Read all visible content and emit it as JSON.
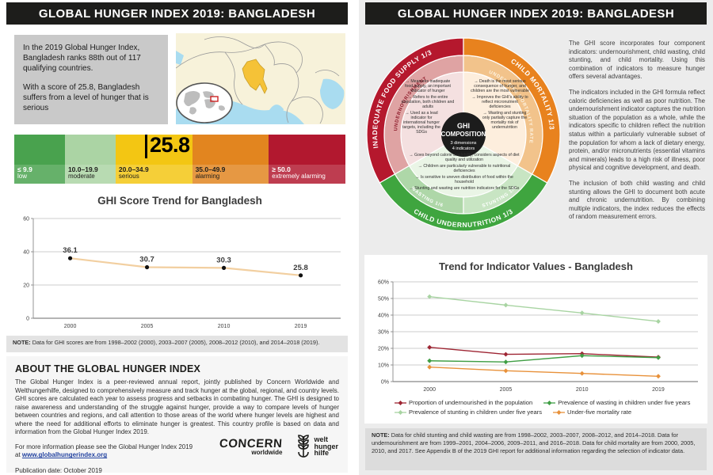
{
  "left": {
    "header": "GLOBAL HUNGER INDEX 2019: BANGLADESH",
    "summary": {
      "para1": "In the 2019 Global Hunger Index, Bangladesh ranks 88th out of 117 qualifying countries.",
      "para2": "With a score of 25.8, Bangladesh suffers from a level of hunger that is serious"
    },
    "scale": {
      "marker_value": "25.8",
      "segments": [
        {
          "range": "≤ 9.9",
          "label": "low",
          "color": "#49a24e",
          "text_color": "#ffffff"
        },
        {
          "range": "10.0–19.9",
          "label": "moderate",
          "color": "#abd4a4",
          "text_color": "#1d1d1b"
        },
        {
          "range": "20.0–34.9",
          "label": "serious",
          "color": "#f3c613",
          "text_color": "#1d1d1b"
        },
        {
          "range": "35.0–49.9",
          "label": "alarming",
          "color": "#e2851f",
          "text_color": "#1d1d1b"
        },
        {
          "range": "≥ 50.0",
          "label": "extremely alarming",
          "color": "#b2182f",
          "text_color": "#ffffff"
        }
      ]
    },
    "note_label": "NOTE:",
    "note_text": "Data for GHI scores are from 1998–2002 (2000), 2003–2007 (2005), 2008–2012 (2010), and 2014–2018 (2019).",
    "about": {
      "heading": "ABOUT THE GLOBAL HUNGER INDEX",
      "body": "The Global Hunger Index is a peer-reviewed annual report, jointly published by Concern Worldwide and Welthungerhilfe, designed to comprehensively measure and track hunger at the global, regional, and country levels. GHI scores are calculated each year to assess progress and setbacks in combating hunger. The GHI is designed to raise awareness and understanding of the struggle against hunger, provide a way to compare levels of hunger between countries and regions, and call attention to those areas of the world where hunger levels are highest and where the need for additional efforts to eliminate hunger is greatest. This country profile is based on data and information from the Global Hunger Index 2019.",
      "more_info_line": "For more information please see the Global Hunger Index 2019",
      "at_prefix": "at ",
      "link": "www.globalhungerindex.org",
      "publication": "Publication date: October 2019"
    },
    "logos": {
      "concern_name": "CONCERN",
      "concern_sub": "worldwide",
      "whh_lines": [
        "welt",
        "hunger",
        "hilfe"
      ]
    }
  },
  "right": {
    "header": "GLOBAL HUNGER INDEX 2019: BANGLADESH",
    "composition": {
      "center": {
        "line1": "GHI",
        "line2": "COMPOSITION",
        "line3": "3 dimensions",
        "line4": "4 indicators"
      },
      "outer_labels": {
        "food_supply": "INADEQUATE FOOD SUPPLY  1/3",
        "child_mortality": "CHILD MORTALITY  1/3",
        "child_undernutrition": "CHILD UNDERNUTRITION  1/3"
      },
      "mid_labels": {
        "undernourishment": "UNDERNOURISHMENT",
        "under_five_mortality": "UNDER-FIVE MORTALITY RATE",
        "wasting": "WASTING  1/6",
        "stunting": "STUNTING  1/6"
      },
      "colors": {
        "outer_red": "#b5182d",
        "outer_orange": "#e8821e",
        "outer_green": "#3fa53f",
        "mid_pink": "#dfa3a3",
        "mid_orange": "#f2c38b",
        "mid_wasting": "#aed7a8",
        "mid_stunting": "#c8e5c3",
        "pale_pink": "#f4e0e0",
        "pale_orange": "#fdeedd",
        "pale_green": "#eaf5e6",
        "center_black": "#1c1c1c"
      },
      "bullets": {
        "undernourishment": [
          "Measures inadequate food supply, an important indicator of hunger",
          "Refers to the entire population, both children and adults",
          "Used as a lead indicator for international hunger targets, including the SDGs"
        ],
        "child_mortality": [
          "Death is the most serious consequence of hunger, and children are the most vulnerable",
          "Improves the GHI's ability to reflect micronutrient deficiencies",
          "Wasting and stunting only partially capture the mortality risk of undernutrition"
        ],
        "child_undernutrition": [
          "Goes beyond calorie availability, considers aspects of diet quality and utilization",
          "Children are particularly vulnerable to nutritional deficiencies",
          "Is sensitive to uneven distribution of food within the household",
          "Stunting and wasting are nutrition indicators for the SDGs"
        ]
      }
    },
    "paragraphs": [
      "The GHI score incorporates four component indicators: undernourishment, child wasting, child stunting, and child mortality. Using this combination of indicators to measure hunger offers several advantages.",
      "The indicators included in the GHI formula reflect caloric deficiencies as well as poor nutrition. The undernourishment indicator captures the nutrition situation of the population as a whole, while the indicators specific to children reflect the nutrition status within a particularly vulnerable subset of the population for whom a lack of dietary energy, protein, and/or micronutrients (essential vitamins and minerals) leads to a high risk of illness, poor physical and cognitive development, and death.",
      "The inclusion of both child wasting and child stunting allows the GHI to document both acute and chronic undernutrition. By combining multiple indicators, the index reduces the effects of random measurement errors."
    ],
    "note_label": "NOTE:",
    "note_text": "Data for child stunting and child wasting are from 1998–2002, 2003–2007, 2008–2012, and 2014–2018. Data for undernourishment are from 1999–2001, 2004–2006, 2009–2011, and 2016–2018. Data for child mortality are from 2000, 2005, 2010, and 2017. See Appendix B of the 2019 GHI report for additional information regarding the selection of indicator data.",
    "legend_rows": [
      [
        0,
        1
      ],
      [
        2,
        3
      ]
    ]
  },
  "chart_data": [
    {
      "type": "line",
      "title": "GHI Score Trend for Bangladesh",
      "x": [
        "2000",
        "2005",
        "2010",
        "2019"
      ],
      "series": [
        {
          "name": "GHI score",
          "values": [
            36.1,
            30.7,
            30.3,
            25.8
          ],
          "color": "#f2cfa0",
          "width": 2.2
        }
      ],
      "ylim": [
        0,
        60
      ],
      "yticks": [
        0,
        20,
        40,
        60
      ],
      "ytick_suffix": "",
      "marker": "circle",
      "marker_color": "#111111",
      "point_labels": true,
      "grid": true,
      "legend_position": "none"
    },
    {
      "type": "line",
      "title": "Trend for Indicator Values - Bangladesh",
      "x": [
        "2000",
        "2005",
        "2010",
        "2019"
      ],
      "series": [
        {
          "name": "Proportion of undernourished in the population",
          "values": [
            20.6,
            16.4,
            16.8,
            14.7
          ],
          "color": "#9e2533",
          "width": 1.4
        },
        {
          "name": "Prevalence of wasting in children under five years",
          "values": [
            12.5,
            11.8,
            15.6,
            14.4
          ],
          "color": "#3f9e44",
          "width": 1.4
        },
        {
          "name": "Prevalence of stunting in children under five years",
          "values": [
            51.1,
            46.0,
            41.3,
            36.2
          ],
          "color": "#a8d4a2",
          "width": 1.4
        },
        {
          "name": "Under-five mortality rate",
          "values": [
            8.7,
            6.5,
            4.9,
            3.2
          ],
          "color": "#e8913a",
          "width": 1.4
        }
      ],
      "ylim": [
        0,
        60
      ],
      "yticks": [
        0,
        10,
        20,
        30,
        40,
        50,
        60
      ],
      "ytick_suffix": "%",
      "marker": "diamond",
      "point_labels": false,
      "grid": true,
      "legend_position": "bottom"
    }
  ]
}
